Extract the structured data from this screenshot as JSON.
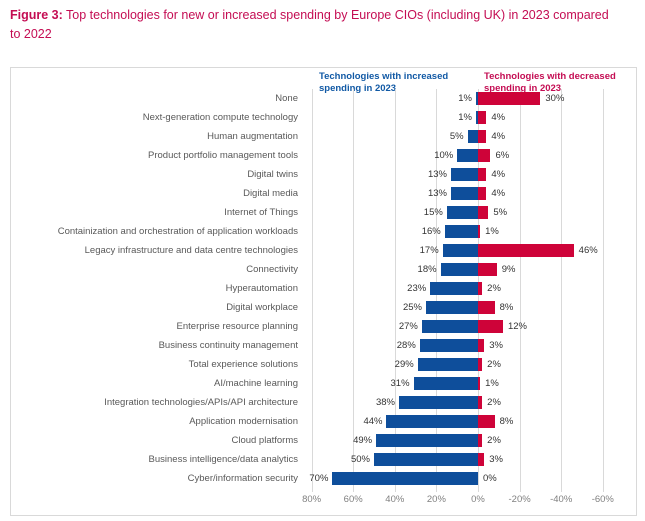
{
  "title": {
    "prefix": "Figure 3:",
    "text": " Top technologies for new or increased spending by Europe CIOs (including UK) in 2023 compared to 2022"
  },
  "colors": {
    "title_accent": "#C40D53",
    "increase_bar": "#0E4E9B",
    "decrease_bar": "#CE0339",
    "legend_increase_text": "#1159A5",
    "legend_decrease_text": "#C40D53",
    "gridline": "#D9D9D9"
  },
  "chart_data": {
    "type": "bar",
    "orientation": "horizontal-diverging",
    "title": "Top technologies for new or increased spending by Europe CIOs (including UK) in 2023 compared to 2022",
    "grid": true,
    "legend_position": "top",
    "value_suffix": "%",
    "x_ticks": [
      "80%",
      "60%",
      "40%",
      "20%",
      "0%",
      "-20%",
      "-40%",
      "-60%"
    ],
    "x_tick_values": [
      80,
      60,
      40,
      20,
      0,
      -20,
      -40,
      -60
    ],
    "xlim": [
      80,
      -60
    ],
    "categories": [
      "None",
      "Next-generation compute technology",
      "Human augmentation",
      "Product portfolio management tools",
      "Digital twins",
      "Digital media",
      "Internet of Things",
      "Containization and orchestration of application workloads",
      "Legacy infrastructure and data centre technologies",
      "Connectivity",
      "Hyperautomation",
      "Digital workplace",
      "Enterprise resource planning",
      "Business continuity management",
      "Total experience solutions",
      "AI/machine learning",
      "Integration technologies/APIs/API architecture",
      "Application modernisation",
      "Cloud platforms",
      "Business intelligence/data analytics",
      "Cyber/information security"
    ],
    "series": [
      {
        "name": "Technologies with increased spending in 2023",
        "direction": "left",
        "color": "#0E4E9B",
        "values": [
          1,
          1,
          5,
          10,
          13,
          13,
          15,
          16,
          17,
          18,
          23,
          25,
          27,
          28,
          29,
          31,
          38,
          44,
          49,
          50,
          70
        ]
      },
      {
        "name": "Technologies with decreased spending in 2023",
        "direction": "right",
        "color": "#CE0339",
        "values": [
          30,
          4,
          4,
          6,
          4,
          4,
          5,
          1,
          46,
          9,
          2,
          8,
          12,
          3,
          2,
          1,
          2,
          8,
          2,
          3,
          0
        ]
      }
    ]
  }
}
